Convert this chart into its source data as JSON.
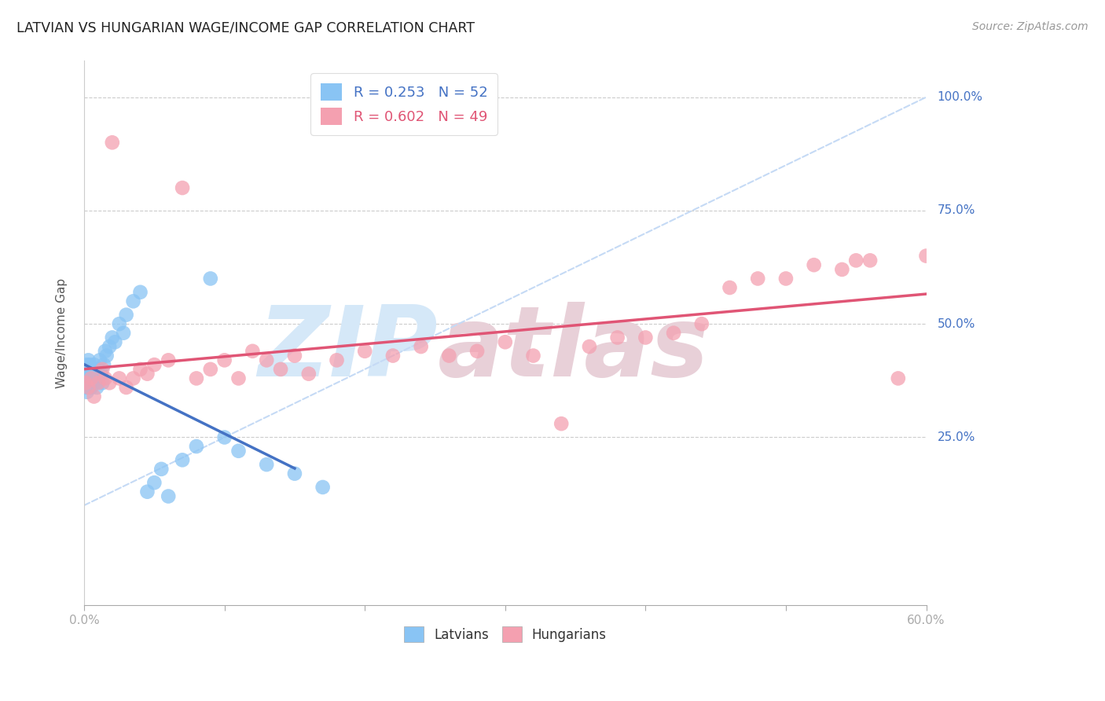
{
  "title": "LATVIAN VS HUNGARIAN WAGE/INCOME GAP CORRELATION CHART",
  "source": "Source: ZipAtlas.com",
  "ylabel": "Wage/Income Gap",
  "xlim": [
    0.0,
    0.6
  ],
  "ylim": [
    -0.12,
    1.08
  ],
  "yticks": [
    0.25,
    0.5,
    0.75,
    1.0
  ],
  "ytick_labels": [
    "25.0%",
    "50.0%",
    "75.0%",
    "100.0%"
  ],
  "latvians_R": 0.253,
  "latvians_N": 52,
  "hungarians_R": 0.602,
  "hungarians_N": 49,
  "latvian_color": "#89c4f4",
  "hungarian_color": "#f4a0b0",
  "latvian_line_color": "#4472c4",
  "hungarian_line_color": "#e05575",
  "ref_line_color": "#c5daf5",
  "axis_label_color": "#4472c4",
  "title_color": "#222222",
  "watermark_zip_color": "#d5e8f8",
  "watermark_atlas_color": "#e8d0d8",
  "watermark_text_zip": "ZIP",
  "watermark_text_atlas": "atlas",
  "background_color": "#ffffff",
  "grid_color": "#cccccc",
  "latvians_x": [
    0.001,
    0.001,
    0.001,
    0.002,
    0.002,
    0.002,
    0.002,
    0.003,
    0.003,
    0.003,
    0.003,
    0.004,
    0.004,
    0.004,
    0.005,
    0.005,
    0.005,
    0.006,
    0.006,
    0.007,
    0.007,
    0.008,
    0.008,
    0.009,
    0.01,
    0.01,
    0.011,
    0.012,
    0.013,
    0.014,
    0.015,
    0.016,
    0.018,
    0.02,
    0.022,
    0.025,
    0.028,
    0.03,
    0.035,
    0.04,
    0.045,
    0.05,
    0.055,
    0.06,
    0.07,
    0.08,
    0.09,
    0.1,
    0.11,
    0.13,
    0.15,
    0.17
  ],
  "latvians_y": [
    0.38,
    0.4,
    0.36,
    0.39,
    0.41,
    0.37,
    0.35,
    0.42,
    0.38,
    0.4,
    0.36,
    0.39,
    0.37,
    0.41,
    0.38,
    0.36,
    0.39,
    0.37,
    0.4,
    0.38,
    0.41,
    0.37,
    0.39,
    0.36,
    0.38,
    0.4,
    0.42,
    0.39,
    0.37,
    0.41,
    0.44,
    0.43,
    0.45,
    0.47,
    0.46,
    0.5,
    0.48,
    0.52,
    0.55,
    0.57,
    0.13,
    0.15,
    0.18,
    0.12,
    0.2,
    0.23,
    0.6,
    0.25,
    0.22,
    0.19,
    0.17,
    0.14
  ],
  "hungarians_x": [
    0.001,
    0.003,
    0.005,
    0.007,
    0.01,
    0.013,
    0.015,
    0.018,
    0.02,
    0.025,
    0.03,
    0.035,
    0.04,
    0.045,
    0.05,
    0.06,
    0.07,
    0.08,
    0.09,
    0.1,
    0.11,
    0.12,
    0.13,
    0.14,
    0.15,
    0.16,
    0.18,
    0.2,
    0.22,
    0.24,
    0.26,
    0.28,
    0.3,
    0.32,
    0.34,
    0.36,
    0.38,
    0.4,
    0.42,
    0.44,
    0.46,
    0.48,
    0.5,
    0.52,
    0.54,
    0.55,
    0.56,
    0.58,
    0.6
  ],
  "hungarians_y": [
    0.37,
    0.36,
    0.38,
    0.34,
    0.37,
    0.4,
    0.38,
    0.37,
    0.9,
    0.38,
    0.36,
    0.38,
    0.4,
    0.39,
    0.41,
    0.42,
    0.8,
    0.38,
    0.4,
    0.42,
    0.38,
    0.44,
    0.42,
    0.4,
    0.43,
    0.39,
    0.42,
    0.44,
    0.43,
    0.45,
    0.43,
    0.44,
    0.46,
    0.43,
    0.28,
    0.45,
    0.47,
    0.47,
    0.48,
    0.5,
    0.58,
    0.6,
    0.6,
    0.63,
    0.62,
    0.64,
    0.64,
    0.38,
    0.65
  ]
}
